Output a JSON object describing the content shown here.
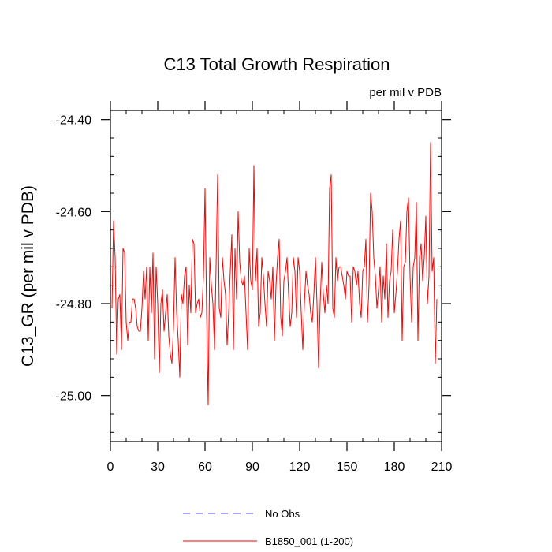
{
  "chart_data": {
    "type": "line",
    "title": "C13 Total Growth Respiration",
    "units_label": "per mil v PDB",
    "ylabel": "C13_GR  (per mil v PDB)",
    "xlabel": "",
    "xlim": [
      0,
      210
    ],
    "ylim": [
      -25.1,
      -24.38
    ],
    "x_ticks": [
      0,
      30,
      60,
      90,
      120,
      150,
      180,
      210
    ],
    "x_tick_labels": [
      "0",
      "30",
      "60",
      "90",
      "120",
      "150",
      "180",
      "210"
    ],
    "x_minor_step": 10,
    "y_ticks": [
      -24.4,
      -24.6,
      -24.8,
      -25.0
    ],
    "y_tick_labels": [
      "-24.40",
      "-24.60",
      "-24.80",
      "-25.00"
    ],
    "y_minor_step": 0.04,
    "legend": [
      {
        "label": "No Obs",
        "color": "#4d4dff",
        "style": "dashed"
      },
      {
        "label": "B1850_001 (1-200)",
        "color": "#ff0000",
        "style": "solid"
      }
    ],
    "series": [
      {
        "name": "B1850_001 (1-200)",
        "color": "#ff0000",
        "x_start": 1,
        "x_step": 1,
        "values": [
          -24.81,
          -24.62,
          -24.7,
          -24.91,
          -24.79,
          -24.78,
          -24.9,
          -24.68,
          -24.69,
          -24.84,
          -24.88,
          -24.84,
          -24.84,
          -24.79,
          -24.79,
          -24.81,
          -24.85,
          -24.86,
          -24.86,
          -24.81,
          -24.73,
          -24.79,
          -24.72,
          -24.88,
          -24.72,
          -24.82,
          -24.69,
          -24.92,
          -24.72,
          -24.8,
          -24.95,
          -24.8,
          -24.77,
          -24.86,
          -24.82,
          -24.78,
          -24.87,
          -24.91,
          -24.93,
          -24.85,
          -24.7,
          -24.82,
          -24.88,
          -24.96,
          -24.78,
          -24.8,
          -24.74,
          -24.72,
          -24.89,
          -24.76,
          -24.82,
          -24.66,
          -24.67,
          -24.82,
          -24.8,
          -24.79,
          -24.83,
          -24.82,
          -24.74,
          -24.55,
          -24.82,
          -25.02,
          -24.7,
          -24.76,
          -24.8,
          -24.9,
          -24.72,
          -24.52,
          -24.81,
          -24.83,
          -24.7,
          -24.75,
          -24.78,
          -24.89,
          -24.82,
          -24.73,
          -24.65,
          -24.9,
          -24.68,
          -24.79,
          -24.6,
          -24.71,
          -24.75,
          -24.76,
          -24.74,
          -24.82,
          -24.9,
          -24.68,
          -24.75,
          -24.77,
          -24.5,
          -24.75,
          -24.68,
          -24.85,
          -24.82,
          -24.7,
          -24.74,
          -24.8,
          -24.85,
          -24.73,
          -24.75,
          -24.79,
          -24.72,
          -24.88,
          -24.76,
          -24.7,
          -24.66,
          -24.83,
          -24.87,
          -24.75,
          -24.73,
          -24.7,
          -24.78,
          -24.85,
          -24.82,
          -24.7,
          -24.73,
          -24.83,
          -24.7,
          -24.73,
          -24.82,
          -24.9,
          -24.8,
          -24.73,
          -24.76,
          -24.78,
          -24.82,
          -24.84,
          -24.78,
          -24.7,
          -24.8,
          -24.94,
          -24.8,
          -24.71,
          -24.78,
          -24.82,
          -24.76,
          -24.8,
          -24.55,
          -24.52,
          -24.81,
          -24.83,
          -24.7,
          -24.75,
          -24.72,
          -24.72,
          -24.74,
          -24.76,
          -24.79,
          -24.73,
          -24.74,
          -24.74,
          -24.84,
          -24.72,
          -24.73,
          -24.76,
          -24.73,
          -24.8,
          -24.83,
          -24.73,
          -24.72,
          -24.66,
          -24.84,
          -24.76,
          -24.56,
          -24.6,
          -24.7,
          -24.74,
          -24.81,
          -24.77,
          -24.72,
          -24.84,
          -24.74,
          -24.79,
          -24.67,
          -24.83,
          -24.75,
          -24.73,
          -24.64,
          -24.82,
          -24.78,
          -24.73,
          -24.66,
          -24.62,
          -24.88,
          -24.72,
          -24.71,
          -24.6,
          -24.57,
          -24.74,
          -24.84,
          -24.72,
          -24.7,
          -24.58,
          -24.88,
          -24.7,
          -24.67,
          -24.75,
          -24.7,
          -24.61,
          -24.8,
          -24.74,
          -24.45,
          -24.73,
          -24.7,
          -24.93,
          -24.79
        ]
      }
    ]
  }
}
